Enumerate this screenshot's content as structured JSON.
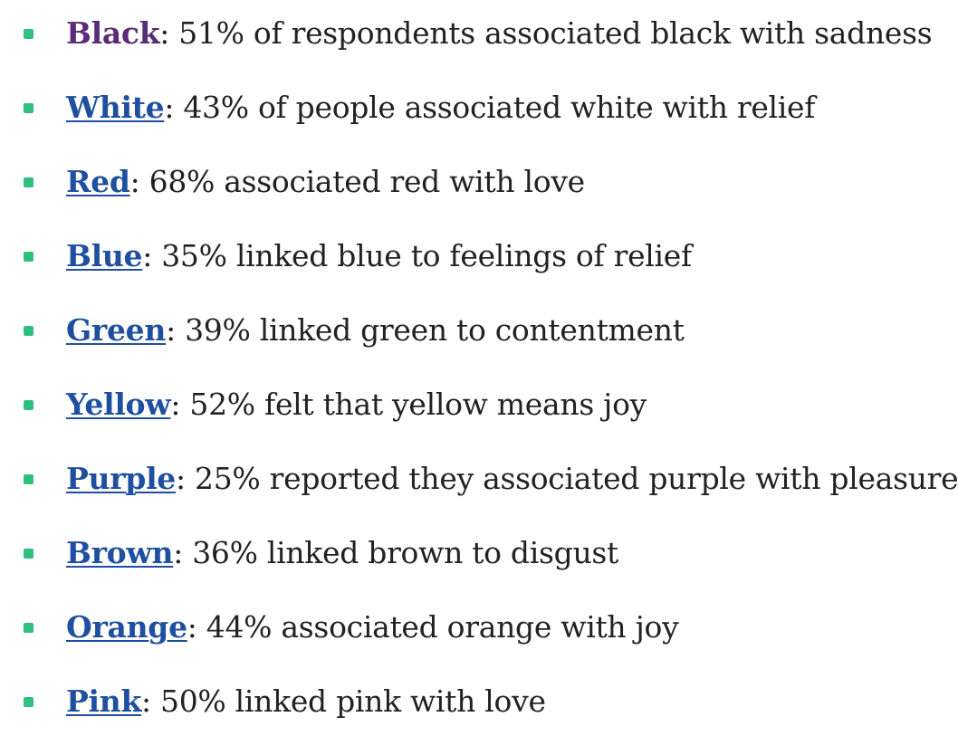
{
  "bullet_color": "#2fbf7f",
  "link_color": "#1f4fa0",
  "visited_link_color": "#5a2b78",
  "items": [
    {
      "link": "Black",
      "text": ": 51% of respondents associated black with sadness",
      "visited": true
    },
    {
      "link": "White",
      "text": ": 43% of people associated white with relief",
      "visited": false
    },
    {
      "link": "Red",
      "text": ": 68% associated red with love",
      "visited": false
    },
    {
      "link": "Blue",
      "text": ": 35% linked blue to feelings of relief",
      "visited": false
    },
    {
      "link": "Green",
      "text": ": 39% linked green to contentment",
      "visited": false
    },
    {
      "link": "Yellow",
      "text": ": 52% felt that yellow means joy",
      "visited": false
    },
    {
      "link": "Purple",
      "text": ": 25% reported they associated purple with pleasure",
      "visited": false
    },
    {
      "link": "Brown",
      "text": ": 36% linked brown to disgust",
      "visited": false
    },
    {
      "link": "Orange",
      "text": ": 44% associated orange with joy",
      "visited": false
    },
    {
      "link": "Pink",
      "text": ": 50% linked pink with love",
      "visited": false
    }
  ]
}
